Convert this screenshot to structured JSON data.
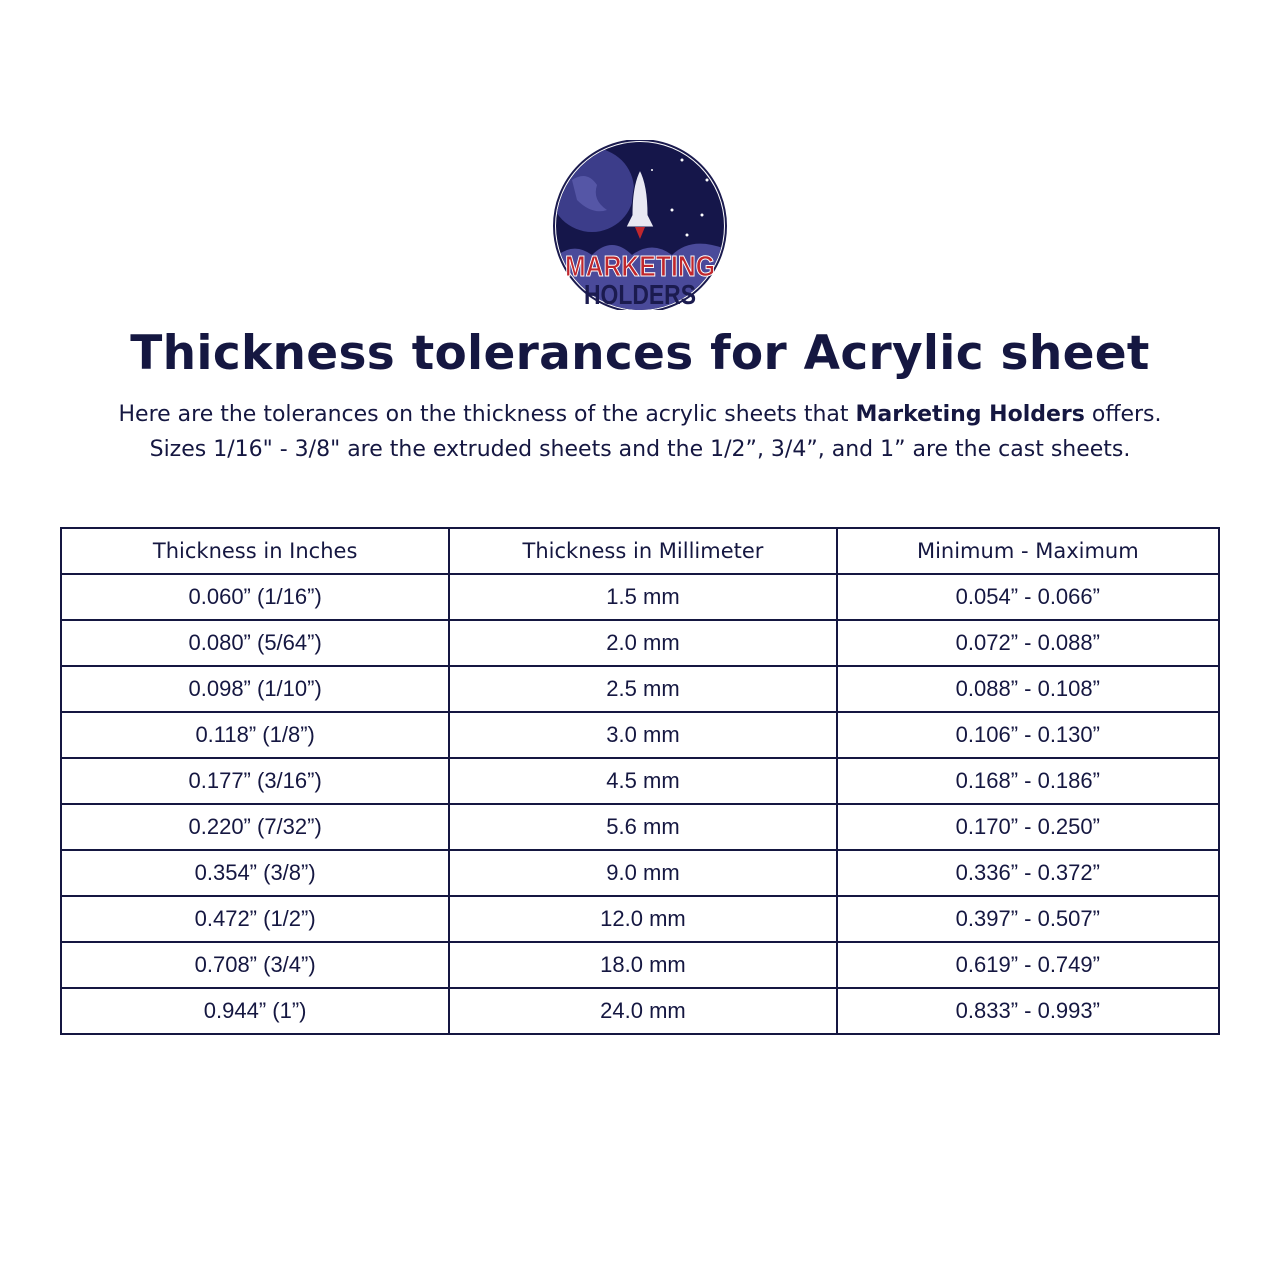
{
  "logo": {
    "text_line1": "MARKETING",
    "text_line2": "HOLDERS",
    "colors": {
      "navy": "#1b1b4f",
      "red": "#c0272d",
      "purple": "#4a4a9a"
    }
  },
  "title": "Thickness tolerances for Acrylic sheet",
  "intro": {
    "line1_before": "Here are the tolerances on the thickness of the acrylic sheets that ",
    "line1_bold": "Marketing Holders",
    "line1_after": " offers.",
    "line2": "Sizes 1/16\" - 3/8\" are the extruded sheets and the 1/2”, 3/4”, and 1” are the cast sheets."
  },
  "table": {
    "headers": [
      "Thickness in Inches",
      "Thickness in Millimeter",
      "Minimum - Maximum"
    ],
    "rows": [
      [
        "0.060” (1/16”)",
        "1.5 mm",
        "0.054” - 0.066”"
      ],
      [
        "0.080” (5/64”)",
        "2.0 mm",
        "0.072” - 0.088”"
      ],
      [
        "0.098” (1/10”)",
        "2.5 mm",
        "0.088” - 0.108”"
      ],
      [
        "0.118” (1/8”)",
        "3.0 mm",
        "0.106” - 0.130”"
      ],
      [
        "0.177” (3/16”)",
        "4.5 mm",
        "0.168” - 0.186”"
      ],
      [
        "0.220” (7/32”)",
        "5.6 mm",
        "0.170” - 0.250”"
      ],
      [
        "0.354” (3/8”)",
        "9.0 mm",
        "0.336” - 0.372”"
      ],
      [
        "0.472” (1/2”)",
        "12.0 mm",
        "0.397” - 0.507”"
      ],
      [
        "0.708” (3/4”)",
        "18.0 mm",
        "0.619” - 0.749”"
      ],
      [
        "0.944” (1”)",
        "24.0 mm",
        "0.833” - 0.993”"
      ]
    ]
  }
}
